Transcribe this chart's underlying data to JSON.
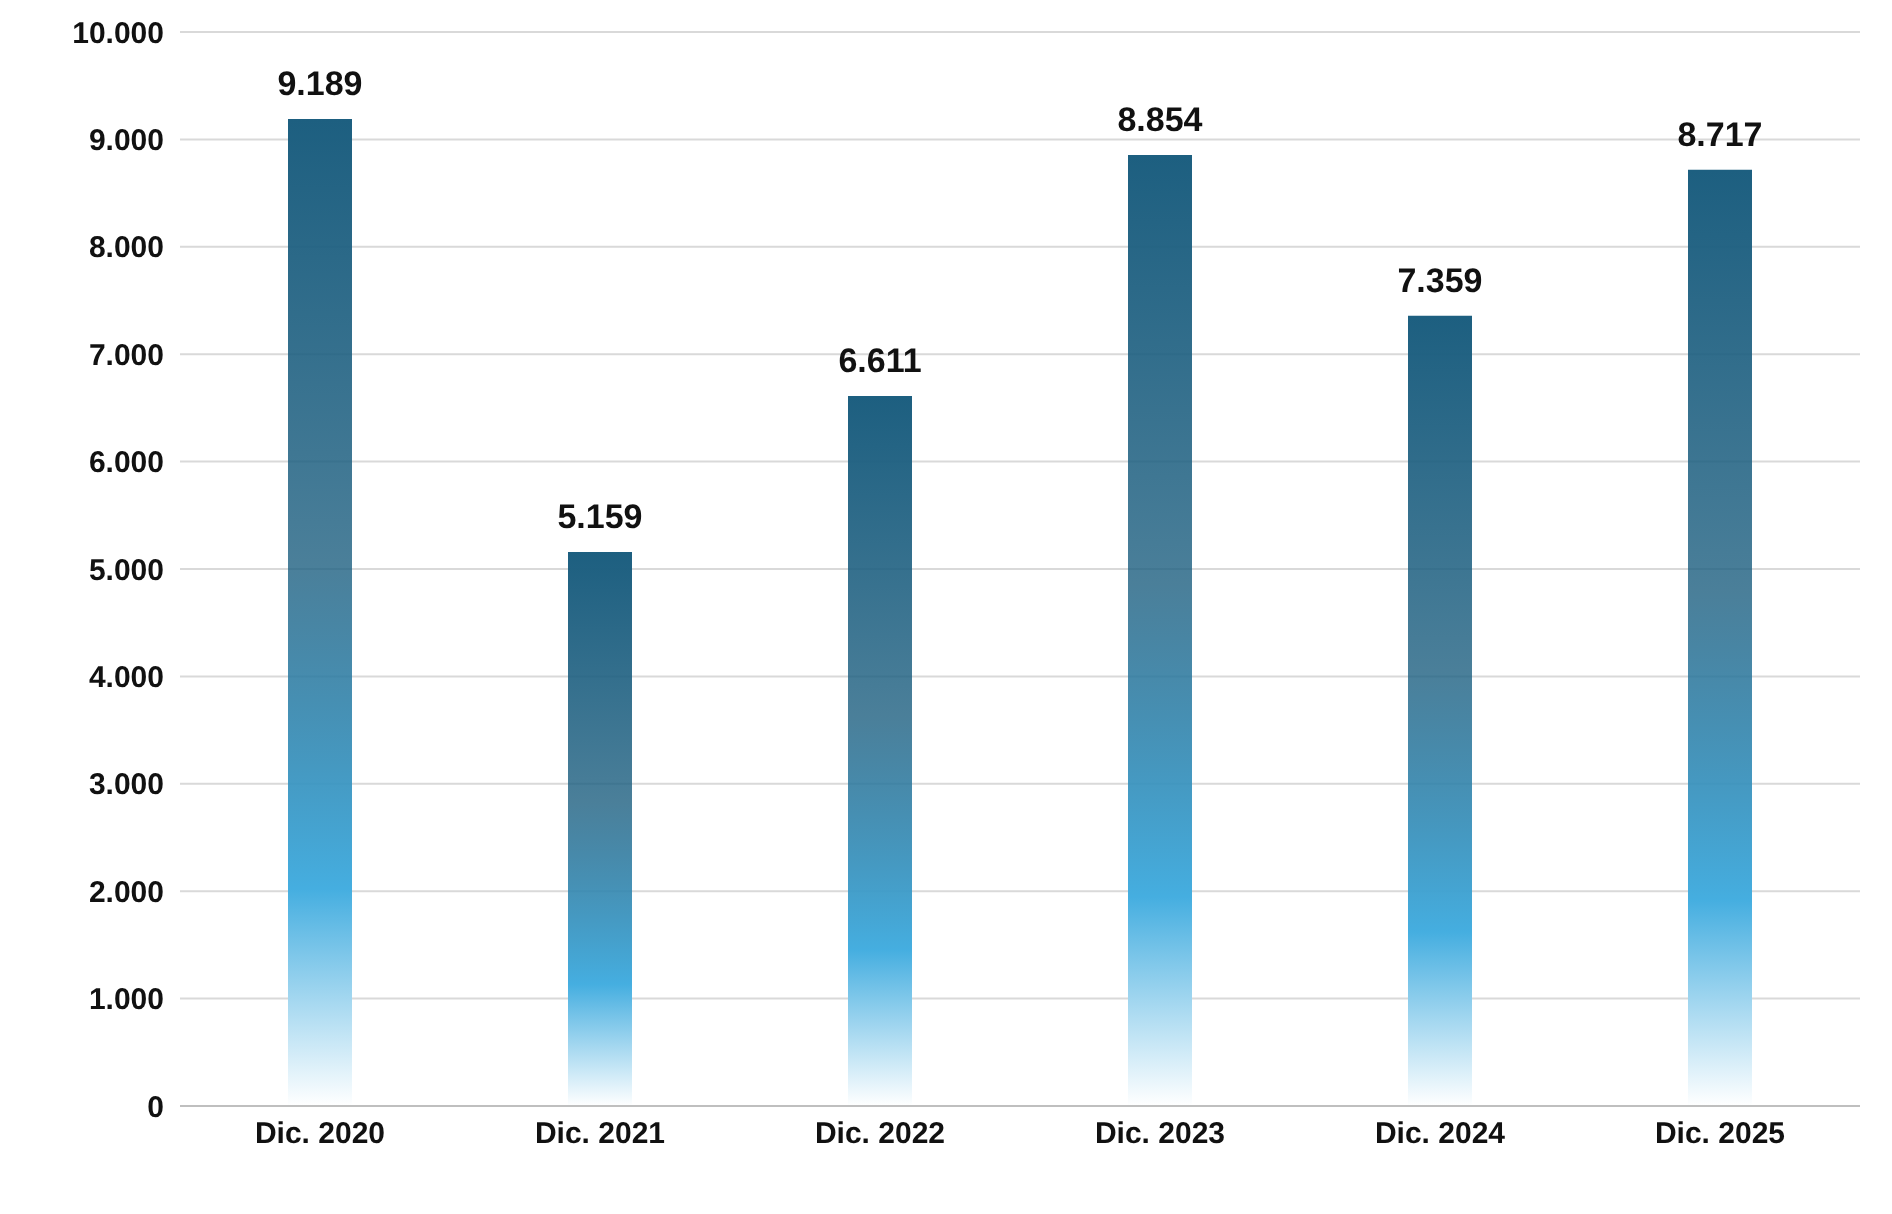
{
  "chart_data": {
    "type": "bar",
    "categories": [
      "Dic. 2020",
      "Dic. 2021",
      "Dic. 2022",
      "Dic. 2023",
      "Dic. 2024",
      "Dic. 2025"
    ],
    "values": [
      9189,
      5159,
      6611,
      8854,
      7359,
      8717
    ],
    "value_labels": [
      "9.189",
      "5.159",
      "6.611",
      "8.854",
      "7.359",
      "8.717"
    ],
    "color": "#1d5f80",
    "ylim": [
      0,
      10000
    ],
    "yticks": [
      {
        "value": 0,
        "label": "0"
      },
      {
        "value": 1000,
        "label": "1.000"
      },
      {
        "value": 2000,
        "label": "2.000"
      },
      {
        "value": 3000,
        "label": "3.000"
      },
      {
        "value": 4000,
        "label": "4.000"
      },
      {
        "value": 5000,
        "label": "5.000"
      },
      {
        "value": 6000,
        "label": "6.000"
      },
      {
        "value": 7000,
        "label": "7.000"
      },
      {
        "value": 8000,
        "label": "8.000"
      },
      {
        "value": 9000,
        "label": "9.000"
      },
      {
        "value": 10000,
        "label": "10.000"
      }
    ],
    "grid": "y",
    "legend": false
  }
}
